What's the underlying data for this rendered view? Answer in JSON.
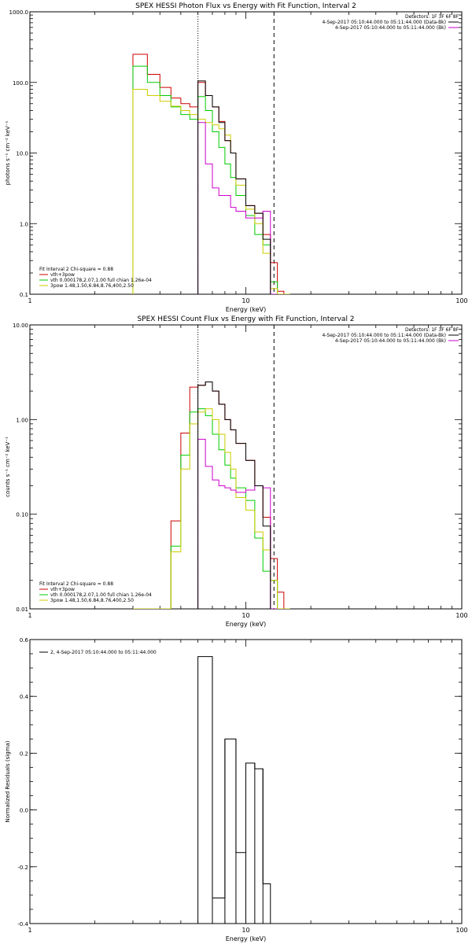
{
  "chart_data": [
    {
      "type": "line",
      "title": "SPEX HESSI Photon Flux vs Energy with Fit Function, Interval 2",
      "xlabel": "Energy (keV)",
      "ylabel": "photons s⁻¹ cm⁻² keV⁻¹",
      "xscale": "log",
      "yscale": "log",
      "xlim": [
        1,
        100
      ],
      "ylim": [
        0.1,
        1000
      ],
      "xticks": [
        {
          "v": 1,
          "label": "1"
        },
        {
          "v": 10,
          "label": "10"
        },
        {
          "v": 100,
          "label": "100"
        }
      ],
      "yticks": [
        {
          "v": 0.1,
          "label": "0.1"
        },
        {
          "v": 1,
          "label": "1.0"
        },
        {
          "v": 10,
          "label": "10.0"
        },
        {
          "v": 100,
          "label": "100.0"
        },
        {
          "v": 1000,
          "label": "1000.0"
        }
      ],
      "vlines": [
        {
          "x": 6.0,
          "style": "dotted"
        },
        {
          "x": 13.5,
          "style": "dashed"
        }
      ],
      "legend_top": [
        "Detectors: 1F 3F 6F 8F",
        "4-Sep-2017 05:10:44.000 to 05:11:44.000 (Data-Bk)",
        "4-Sep-2017 05:10:44.000 to 05:11:44.000 (Bk)"
      ],
      "legend_top_colors": [
        "",
        "#000000",
        "#cc00cc"
      ],
      "legend_bottom_title": "Fit Interval 2  Chi-square = 0.88",
      "legend_bottom": [
        "vth+3pow",
        "vth 0.000178,2.07,1.00  full chian 1.26e-04",
        "3pow 1.48,1.50,6.84,8.76,400,2.50"
      ],
      "legend_bottom_colors": [
        "#cc0000",
        "#00cc00",
        "#cccc00"
      ],
      "series": [
        {
          "name": "vth+3pow",
          "color": "#cc0000",
          "edges": [
            3,
            3.5,
            4,
            4.5,
            5,
            5.5,
            6,
            6.5,
            7,
            7.5,
            8,
            8.5,
            9,
            10,
            11,
            12,
            13,
            14,
            15,
            16
          ],
          "values": [
            250,
            130,
            85,
            60,
            50,
            45,
            100,
            65,
            45,
            28,
            15,
            10,
            4.3,
            1.8,
            1.4,
            0.7,
            0.28,
            0.11,
            0.1
          ]
        },
        {
          "name": "vth 0.000178,2.07,1.00  full chian 1.26e-04",
          "color": "#00cc00",
          "edges": [
            3,
            3.5,
            4,
            4.5,
            5,
            5.5,
            6,
            6.5,
            7,
            7.5,
            8,
            8.5,
            9,
            10,
            11,
            12,
            13,
            14,
            15,
            16
          ],
          "values": [
            170,
            100,
            65,
            45,
            35,
            30,
            63,
            40,
            20,
            12,
            7,
            4.5,
            2.5,
            1.3,
            0.7,
            0.5,
            0.15,
            0.1,
            0.1
          ]
        },
        {
          "name": "3pow 1.48,1.50,6.84,8.76,400,2.50",
          "color": "#cccc00",
          "edges": [
            3,
            3.5,
            4,
            4.5,
            5,
            5.5,
            6,
            6.5,
            7,
            7.5,
            8,
            8.5,
            9,
            10,
            11,
            12,
            13,
            14,
            15,
            16
          ],
          "values": [
            80,
            65,
            54,
            46,
            40,
            35,
            30,
            27,
            25,
            22,
            18,
            10,
            3.5,
            1.6,
            1.0,
            0.38,
            0.12,
            0.1,
            0.1
          ]
        },
        {
          "name": "Bk",
          "color": "#cc00cc",
          "edges": [
            6,
            6.5,
            7,
            7.5,
            8,
            8.5,
            9,
            10,
            11,
            12,
            13,
            14
          ],
          "values": [
            27,
            7,
            3.2,
            2.5,
            2.5,
            1.7,
            1.5,
            1.2,
            1.2,
            1.5,
            0.1
          ]
        },
        {
          "name": "Data-Bk",
          "color": "#000000",
          "edges": [
            6,
            6.5,
            7,
            7.5,
            8,
            8.5,
            9,
            10,
            11,
            12,
            13
          ],
          "values": [
            105,
            65,
            45,
            27,
            15,
            10,
            4.3,
            1.8,
            1.4,
            0.6
          ]
        }
      ]
    },
    {
      "type": "line",
      "title": "SPEX HESSI Count Flux vs Energy with Fit Function, Interval 2",
      "xlabel": "Energy (keV)",
      "ylabel": "counts s⁻¹ cm⁻² keV⁻¹",
      "xscale": "log",
      "yscale": "log",
      "xlim": [
        1,
        100
      ],
      "ylim": [
        0.01,
        10
      ],
      "xticks": [
        {
          "v": 1,
          "label": "1"
        },
        {
          "v": 10,
          "label": "10"
        },
        {
          "v": 100,
          "label": "100"
        }
      ],
      "yticks": [
        {
          "v": 0.01,
          "label": "0.01"
        },
        {
          "v": 0.1,
          "label": "0.10"
        },
        {
          "v": 1,
          "label": "1.00"
        },
        {
          "v": 10,
          "label": "10.00"
        }
      ],
      "vlines": [
        {
          "x": 6.0,
          "style": "dotted"
        },
        {
          "x": 13.5,
          "style": "dashed"
        }
      ],
      "legend_top": [
        "Detectors: 1F 3F 6F 8F",
        "4-Sep-2017 05:10:44.000 to 05:11:44.000 (Data-Bk)",
        "4-Sep-2017 05:10:44.000 to 05:11:44.000 (Bk)"
      ],
      "legend_top_colors": [
        "",
        "#000000",
        "#cc00cc"
      ],
      "legend_bottom_title": "Fit Interval 2  Chi-square = 0.88",
      "legend_bottom": [
        "vth+3pow",
        "vth 0.000178,2.07,1.00  full chian 1.26e-04",
        "3pow 1.48,1.50,6.84,8.76,400,2.50"
      ],
      "legend_bottom_colors": [
        "#cc0000",
        "#00cc00",
        "#cccc00"
      ],
      "series": [
        {
          "name": "vth+3pow",
          "color": "#cc0000",
          "edges": [
            3,
            3.5,
            4,
            4.5,
            5,
            5.5,
            6,
            6.5,
            7,
            7.5,
            8,
            8.5,
            9,
            10,
            11,
            12,
            13,
            14,
            15,
            16
          ],
          "values": [
            0.01,
            0.01,
            0.01,
            0.085,
            0.72,
            2.2,
            2.3,
            2.5,
            2.0,
            1.45,
            1.0,
            0.78,
            0.56,
            0.37,
            0.2,
            0.093,
            0.034,
            0.015,
            0.01
          ]
        },
        {
          "name": "vth 0.000178,2.07,1.00  full chian 1.26e-04",
          "color": "#00cc00",
          "edges": [
            3,
            3.5,
            4,
            4.5,
            5,
            5.5,
            6,
            6.5,
            7,
            7.5,
            8,
            8.5,
            9,
            10,
            11,
            12,
            13,
            14,
            15,
            16
          ],
          "values": [
            0.01,
            0.01,
            0.01,
            0.046,
            0.42,
            1.2,
            1.3,
            1.1,
            0.7,
            0.48,
            0.33,
            0.24,
            0.19,
            0.14,
            0.056,
            0.025,
            0.02,
            0.01,
            0.01
          ]
        },
        {
          "name": "3pow 1.48,1.50,6.84,8.76,400,2.50",
          "color": "#cccc00",
          "edges": [
            3,
            3.5,
            4,
            4.5,
            5,
            5.5,
            6,
            6.5,
            7,
            7.5,
            8,
            8.5,
            9,
            10,
            11,
            12,
            13,
            14,
            15,
            16
          ],
          "values": [
            0.01,
            0.01,
            0.01,
            0.04,
            0.3,
            0.9,
            1.2,
            1.3,
            1.0,
            0.7,
            0.45,
            0.3,
            0.15,
            0.11,
            0.065,
            0.042,
            0.02,
            0.01,
            0.01
          ]
        },
        {
          "name": "Bk",
          "color": "#cc00cc",
          "edges": [
            6,
            6.5,
            7,
            7.5,
            8,
            8.5,
            9,
            10,
            11,
            12,
            13,
            14
          ],
          "values": [
            0.62,
            0.32,
            0.23,
            0.2,
            0.19,
            0.18,
            0.17,
            0.18,
            0.2,
            0.19,
            0.01
          ]
        },
        {
          "name": "Data-Bk",
          "color": "#000000",
          "edges": [
            6,
            6.5,
            7,
            7.5,
            8,
            8.5,
            9,
            10,
            11,
            12,
            13
          ],
          "values": [
            2.3,
            2.5,
            2.0,
            1.45,
            1.0,
            0.78,
            0.56,
            0.37,
            0.2,
            0.075
          ]
        }
      ]
    },
    {
      "type": "line",
      "title": "",
      "xlabel": "Energy (keV)",
      "ylabel": "Normalized Residuals (sigma)",
      "xscale": "log",
      "yscale": "linear",
      "xlim": [
        1,
        100
      ],
      "ylim": [
        -0.4,
        0.6
      ],
      "xticks": [
        {
          "v": 1,
          "label": "1"
        },
        {
          "v": 10,
          "label": "10"
        },
        {
          "v": 100,
          "label": "100"
        }
      ],
      "yticks": [
        {
          "v": -0.4,
          "label": "-0.4"
        },
        {
          "v": -0.2,
          "label": "-0.2"
        },
        {
          "v": 0.0,
          "label": "0.0"
        },
        {
          "v": 0.2,
          "label": "0.2"
        },
        {
          "v": 0.4,
          "label": "0.4"
        },
        {
          "v": 0.6,
          "label": "0.6"
        }
      ],
      "legend_top_left": [
        "2,  4-Sep-2017 05:10:44.000 to 05:11:44.000"
      ],
      "series": [
        {
          "name": "2,  4-Sep-2017 05:10:44.000 to 05:11:44.000",
          "color": "#000000",
          "edges": [
            6,
            7,
            8,
            9,
            10,
            11,
            12,
            13
          ],
          "values": [
            0.54,
            -0.31,
            0.25,
            -0.15,
            0.165,
            0.145,
            -0.26
          ],
          "base": -0.4
        }
      ]
    }
  ]
}
